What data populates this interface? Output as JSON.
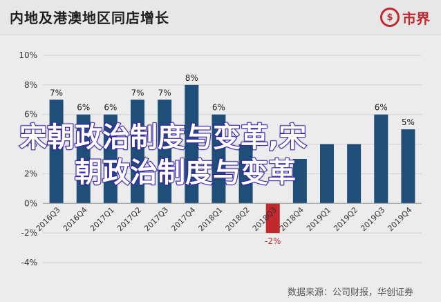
{
  "header": {
    "title": "内地及港澳地区同店增长",
    "logo_mark": "$",
    "logo_text": "市界"
  },
  "chart_data": {
    "type": "bar",
    "categories": [
      "2016Q3",
      "2016Q4",
      "2017Q1",
      "2017Q2",
      "2017Q3",
      "2017Q4",
      "2018Q1",
      "2018Q2",
      "2018Q3",
      "2018Q4",
      "2019Q1",
      "2019Q2",
      "2019Q3",
      "2019Q4"
    ],
    "values": [
      7,
      6,
      6,
      7,
      7,
      8,
      6,
      4,
      -2,
      3,
      4,
      4,
      6,
      5
    ],
    "data_labels": [
      "7%",
      "6%",
      "6%",
      "7%",
      "7%",
      "8%",
      "6%",
      "",
      "-2%",
      "",
      "",
      "",
      "6%",
      "5%"
    ],
    "yticks": [
      "10%",
      "8%",
      "6%",
      "4%",
      "2%",
      "0%",
      "-2%",
      "-4%"
    ],
    "ylim": [
      -4,
      10
    ],
    "grid": true,
    "colors": {
      "positive": "#1f4e79",
      "negative": "#c0282d",
      "grid": "#d0d0d0"
    }
  },
  "source": "数据来源：公司财报，华创证券",
  "overlay": {
    "line1": "宋朝政治制度与变革,宋",
    "line2": "朝政治制度与变革"
  }
}
